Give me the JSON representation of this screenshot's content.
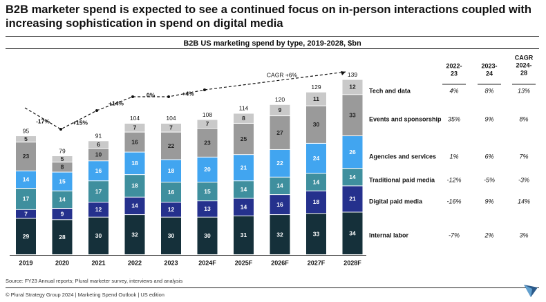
{
  "header": {
    "title": "B2B marketer spend is expected to see a continued focus on in-person interactions coupled with increasing sophistication in spend on digital media"
  },
  "chart_data": {
    "type": "bar",
    "stacked": true,
    "title": "B2B US marketing spend by type, 2019-2028, $bn",
    "categories": [
      "2019",
      "2020",
      "2021",
      "2022",
      "2023",
      "2024F",
      "2025F",
      "2026F",
      "2027F",
      "2028F"
    ],
    "totals": [
      95,
      79,
      91,
      104,
      104,
      108,
      114,
      120,
      129,
      139
    ],
    "series": [
      {
        "name": "Internal labor",
        "color": "#15303a",
        "values": [
          29,
          28,
          30,
          32,
          30,
          30,
          31,
          32,
          33,
          34
        ],
        "growth": [
          "-7%",
          "2%",
          "3%"
        ]
      },
      {
        "name": "Digital paid media",
        "color": "#25318d",
        "values": [
          7,
          9,
          12,
          14,
          12,
          13,
          14,
          16,
          18,
          21
        ],
        "growth": [
          "-16%",
          "9%",
          "14%"
        ]
      },
      {
        "name": "Traditional paid media",
        "color": "#3f8f9e",
        "values": [
          17,
          14,
          17,
          18,
          16,
          15,
          14,
          14,
          14,
          14
        ],
        "growth": [
          "-12%",
          "-5%",
          "-3%"
        ]
      },
      {
        "name": "Agencies and services",
        "color": "#41a5f0",
        "values": [
          14,
          15,
          16,
          18,
          18,
          20,
          21,
          22,
          24,
          26
        ],
        "growth": [
          "1%",
          "6%",
          "7%"
        ]
      },
      {
        "name": "Events and sponsorship",
        "color": "#9a9a9a",
        "values": [
          23,
          8,
          10,
          16,
          22,
          23,
          25,
          27,
          30,
          33
        ],
        "growth": [
          "35%",
          "9%",
          "8%"
        ]
      },
      {
        "name": "Tech and data",
        "color": "#c9c9c9",
        "values": [
          5,
          5,
          6,
          7,
          7,
          7,
          8,
          9,
          11,
          12
        ],
        "growth": [
          "4%",
          "8%",
          "13%"
        ]
      }
    ],
    "growth_headers": [
      "2022-23",
      "2023-24",
      "CAGR 2024-28"
    ],
    "trend_annotations": [
      "-17%",
      "+15%",
      "+14%",
      "0%",
      "+4%",
      "CAGR +6%"
    ]
  },
  "source": "Source: FY23 Annual reports; Plural marketer survey, interviews and analysis",
  "footer": "© Plural Strategy Group 2024 | Marketing Spend Outlook | US edition",
  "logo": {
    "color": "#2b5a8a",
    "icon": "plural-logo"
  }
}
